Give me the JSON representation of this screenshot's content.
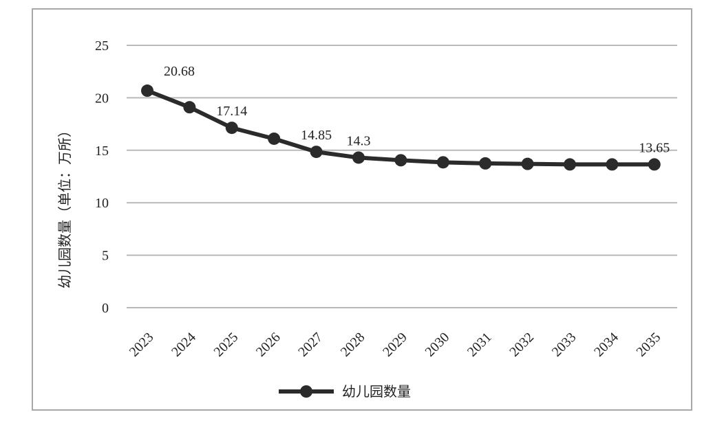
{
  "chart_data": {
    "type": "line",
    "title": "",
    "xlabel": "",
    "ylabel": "幼儿园数量（单位：万所）",
    "ylim": [
      0,
      25
    ],
    "y_ticks": [
      "0",
      "5",
      "10",
      "15",
      "20",
      "25"
    ],
    "categories": [
      "2023",
      "2024",
      "2025",
      "2026",
      "2027",
      "2028",
      "2029",
      "2030",
      "2031",
      "2032",
      "2033",
      "2034",
      "2035"
    ],
    "series": [
      {
        "name": "幼儿园数量",
        "values": [
          20.68,
          19.1,
          17.14,
          16.1,
          14.85,
          14.3,
          14.05,
          13.85,
          13.75,
          13.7,
          13.65,
          13.65,
          13.65
        ],
        "data_labels": [
          "20.68",
          "",
          "17.14",
          "",
          "14.85",
          "14.3",
          "",
          "",
          "",
          "",
          "",
          "",
          "13.65"
        ]
      }
    ],
    "grid": true,
    "legend_position": "bottom",
    "line_color": "#2b2b2b"
  }
}
